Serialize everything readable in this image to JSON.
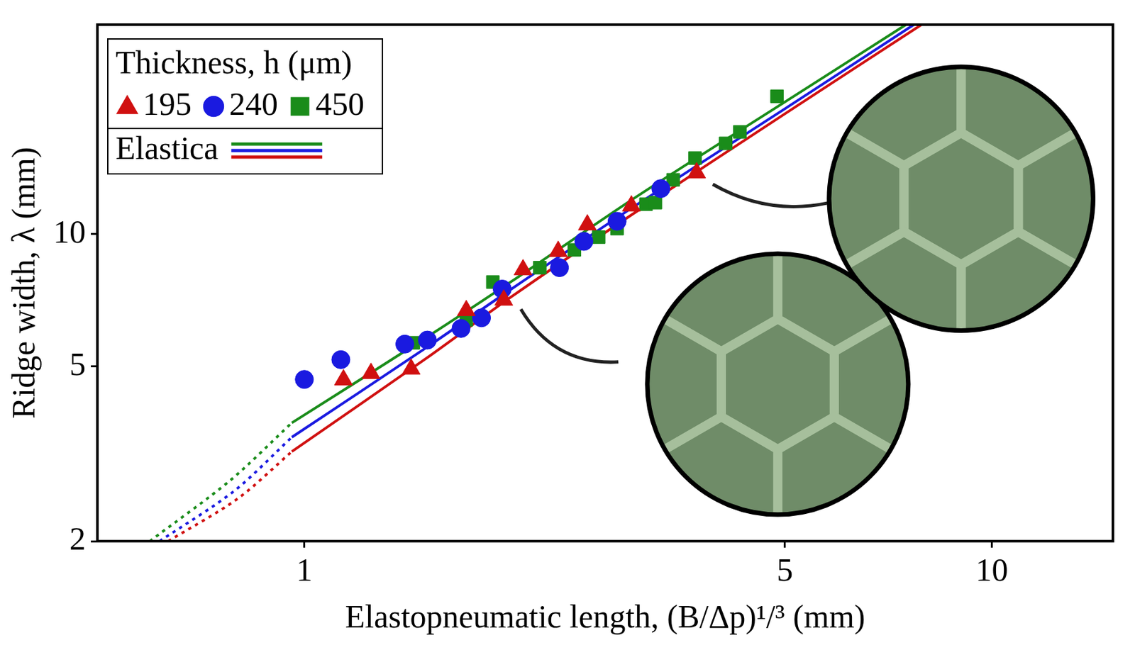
{
  "chart_data": {
    "type": "scatter",
    "x_label": "Elastopneumatic length, (B/Δp)¹/³ (mm)",
    "y_label": "Ridge width, λ (mm)",
    "legend_title": "Thickness, h (μm)",
    "log": true,
    "grid": false,
    "legend": "upper left",
    "xlim": [
      0.5,
      15
    ],
    "ylim": [
      2,
      30
    ],
    "xticks": [
      1,
      5,
      10
    ],
    "yticks": [
      2,
      5,
      10
    ],
    "series": [
      {
        "name": "195",
        "color": "#d01010",
        "marker": "triangle",
        "x": [
          1.14,
          1.25,
          1.43,
          1.72,
          1.95,
          2.08,
          2.34,
          2.58,
          2.99,
          3.72
        ],
        "values": [
          4.66,
          4.82,
          4.93,
          6.7,
          7.08,
          8.3,
          9.14,
          10.5,
          11.6,
          13.8
        ]
      },
      {
        "name": "240",
        "color": "#1a1ae0",
        "marker": "circle",
        "x": [
          1.0,
          1.13,
          1.4,
          1.51,
          1.69,
          1.81,
          1.94,
          2.35,
          2.55,
          2.85,
          3.3
        ],
        "values": [
          4.67,
          5.18,
          5.62,
          5.74,
          6.1,
          6.45,
          7.5,
          8.39,
          9.63,
          10.7,
          12.7
        ]
      },
      {
        "name": "450",
        "color": "#1a8c1a",
        "marker": "square",
        "x": [
          1.44,
          1.72,
          1.88,
          2.2,
          2.47,
          2.68,
          2.85,
          3.14,
          3.24,
          3.44,
          3.7,
          4.1,
          4.3,
          4.87
        ],
        "values": [
          5.66,
          6.38,
          7.78,
          8.39,
          9.21,
          9.85,
          10.3,
          11.7,
          11.8,
          13.3,
          14.9,
          16.1,
          17.1,
          20.6
        ]
      },
      {
        "name": "Elastica",
        "type": "line",
        "color": "#1a8c1a",
        "line_style": "solid",
        "marker": "none",
        "x": [
          0.959,
          1.5,
          2,
          3,
          5,
          7.5
        ],
        "values": [
          3.72,
          5.8,
          7.8,
          12.0,
          20.0,
          30
        ]
      },
      {
        "name": "Elastica",
        "type": "line",
        "color": "#1a1ae0",
        "line_style": "solid",
        "marker": "none",
        "x": [
          0.959,
          1.5,
          2,
          3,
          5,
          7.7
        ],
        "values": [
          3.45,
          5.5,
          7.5,
          11.5,
          19.3,
          30
        ]
      },
      {
        "name": "Elastica",
        "type": "line",
        "color": "#d01010",
        "line_style": "solid",
        "marker": "none",
        "x": [
          0.959,
          1.5,
          2,
          3,
          5,
          7.9
        ],
        "values": [
          3.2,
          5.2,
          7.2,
          11.1,
          18.8,
          30
        ]
      },
      {
        "name": "Elastica",
        "type": "line",
        "color": "#1a8c1a",
        "line_style": "dotted",
        "marker": "none",
        "x": [
          0.596,
          0.78,
          0.959
        ],
        "values": [
          2,
          2.75,
          3.72
        ]
      },
      {
        "name": "Elastica",
        "type": "line",
        "color": "#1a1ae0",
        "line_style": "dotted",
        "marker": "none",
        "x": [
          0.616,
          0.79,
          0.959
        ],
        "values": [
          2,
          2.6,
          3.45
        ]
      },
      {
        "name": "Elastica",
        "type": "line",
        "color": "#d01010",
        "line_style": "dotted",
        "marker": "none",
        "x": [
          0.634,
          0.8,
          0.959
        ],
        "values": [
          2,
          2.5,
          3.2
        ]
      }
    ]
  }
}
